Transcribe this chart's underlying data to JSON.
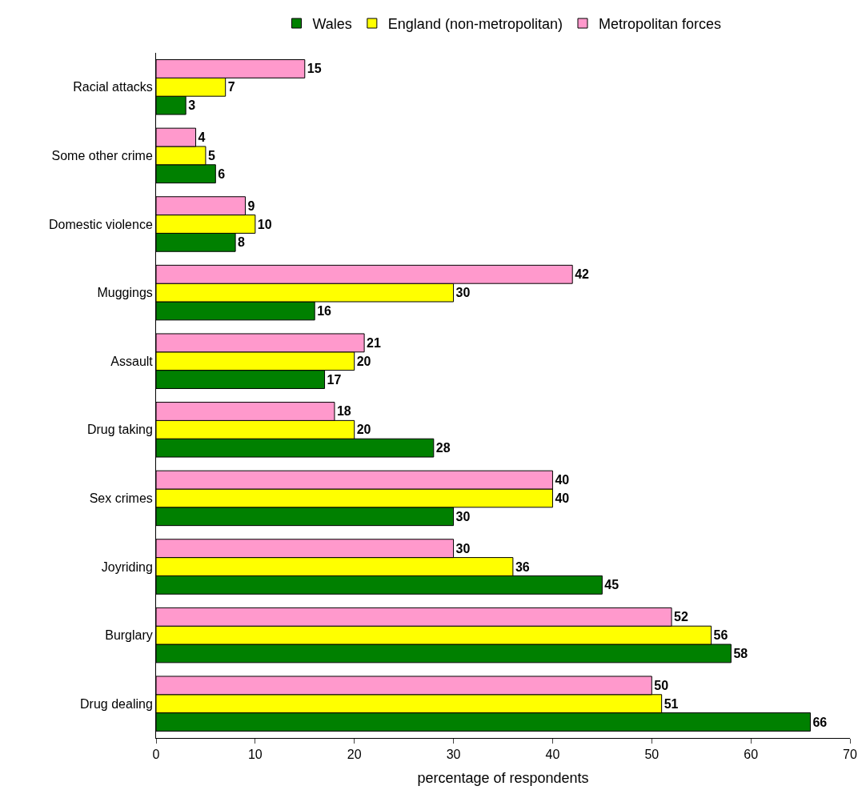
{
  "chart_data": {
    "type": "bar",
    "orientation": "horizontal",
    "xlabel": "percentage of respondents",
    "categories": [
      "Racial attacks",
      "Some other crime",
      "Domestic violence",
      "Muggings",
      "Assault",
      "Drug taking",
      "Sex crimes",
      "Joyriding",
      "Burglary",
      "Drug dealing"
    ],
    "series": [
      {
        "name": "Wales",
        "color": "#008000",
        "values": [
          3,
          6,
          8,
          16,
          17,
          28,
          30,
          45,
          58,
          66
        ]
      },
      {
        "name": "England (non-metropolitan)",
        "color": "#ffff00",
        "values": [
          7,
          5,
          10,
          30,
          20,
          20,
          40,
          36,
          56,
          51
        ]
      },
      {
        "name": "Metropolitan forces",
        "color": "#ff99cc",
        "values": [
          15,
          4,
          9,
          42,
          21,
          18,
          40,
          30,
          52,
          50
        ]
      }
    ],
    "xlim": [
      0,
      70
    ],
    "xticks": [
      0,
      10,
      20,
      30,
      40,
      50,
      60,
      70
    ],
    "grid": false,
    "legend": "top",
    "data_labels": true
  }
}
